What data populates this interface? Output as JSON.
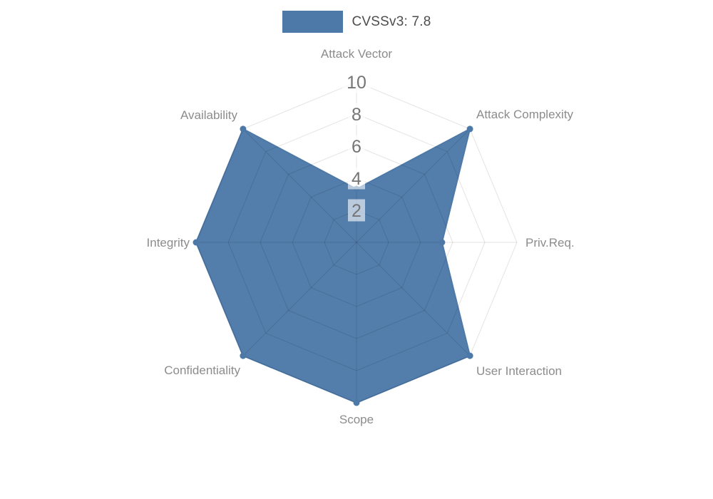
{
  "chart_data": {
    "type": "radar",
    "title": "CVSSv3: 7.8",
    "legend_position": "top",
    "categories": [
      "Attack Vector",
      "Attack Complexity",
      "Priv.Req.",
      "User Interaction",
      "Scope",
      "Confidentiality",
      "Integrity",
      "Availability"
    ],
    "series": [
      {
        "name": "CVSSv3: 7.8",
        "values": [
          3.33,
          10,
          5.33,
          10,
          10,
          10,
          10,
          10
        ]
      }
    ],
    "ticks": [
      2,
      4,
      6,
      8,
      10
    ],
    "rmax": 10,
    "grid": true,
    "colors": {
      "series": "#4d79a8",
      "grid_line": "rgba(0,0,0,0.11)",
      "axis_label": "#8c8c8c",
      "tick_label": "#757575",
      "tick_box": "rgba(255,255,255,0.6)",
      "title_text": "#4d4d4d"
    }
  }
}
